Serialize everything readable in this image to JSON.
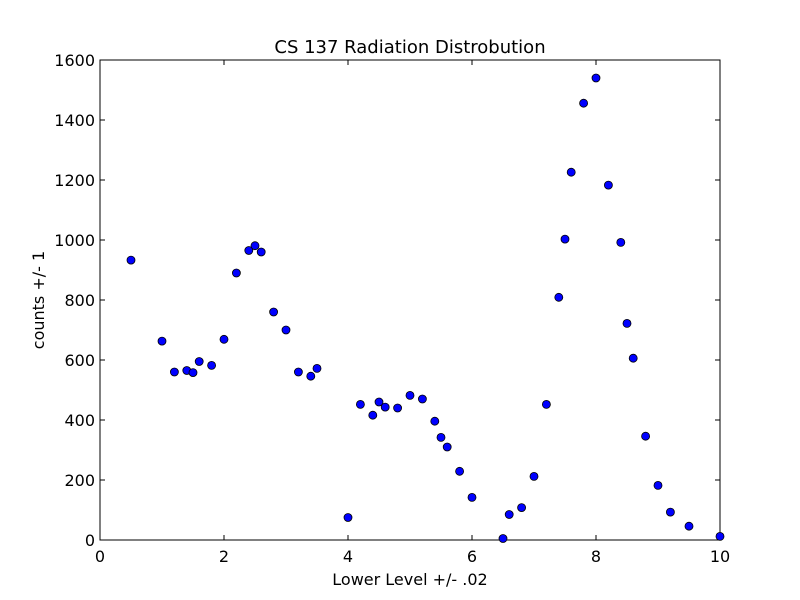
{
  "chart_data": {
    "type": "scatter",
    "title": "CS 137 Radiation Distrobution",
    "xlabel": "Lower Level +/- .02",
    "ylabel": "counts +/- 1",
    "xlim": [
      0,
      10
    ],
    "ylim": [
      0,
      1600
    ],
    "x_ticks": [
      0,
      2,
      4,
      6,
      8,
      10
    ],
    "y_ticks": [
      0,
      200,
      400,
      600,
      800,
      1000,
      1200,
      1400,
      1600
    ],
    "grid": false,
    "marker_color": "#0000ff",
    "marker_edge_color": "#000000",
    "series": [
      {
        "points": [
          [
            0.5,
            933
          ],
          [
            1.0,
            663
          ],
          [
            1.2,
            560
          ],
          [
            1.4,
            565
          ],
          [
            1.5,
            558
          ],
          [
            1.6,
            595
          ],
          [
            1.8,
            582
          ],
          [
            2.0,
            669
          ],
          [
            2.2,
            890
          ],
          [
            2.4,
            965
          ],
          [
            2.5,
            981
          ],
          [
            2.6,
            960
          ],
          [
            2.8,
            760
          ],
          [
            3.0,
            700
          ],
          [
            3.2,
            560
          ],
          [
            3.4,
            546
          ],
          [
            3.5,
            572
          ],
          [
            4.0,
            75
          ],
          [
            4.2,
            452
          ],
          [
            4.4,
            416
          ],
          [
            4.5,
            460
          ],
          [
            4.6,
            443
          ],
          [
            4.8,
            440
          ],
          [
            5.0,
            482
          ],
          [
            5.2,
            470
          ],
          [
            5.4,
            396
          ],
          [
            5.5,
            342
          ],
          [
            5.6,
            310
          ],
          [
            5.8,
            229
          ],
          [
            6.0,
            142
          ],
          [
            6.5,
            5
          ],
          [
            6.6,
            85
          ],
          [
            6.8,
            108
          ],
          [
            7.0,
            212
          ],
          [
            7.2,
            452
          ],
          [
            7.4,
            809
          ],
          [
            7.5,
            1003
          ],
          [
            7.6,
            1226
          ],
          [
            7.8,
            1456
          ],
          [
            8.0,
            1540
          ],
          [
            8.2,
            1183
          ],
          [
            8.4,
            992
          ],
          [
            8.5,
            722
          ],
          [
            8.6,
            606
          ],
          [
            8.8,
            346
          ],
          [
            9.0,
            182
          ],
          [
            9.2,
            93
          ],
          [
            9.5,
            46
          ],
          [
            10.0,
            12
          ]
        ]
      }
    ]
  }
}
